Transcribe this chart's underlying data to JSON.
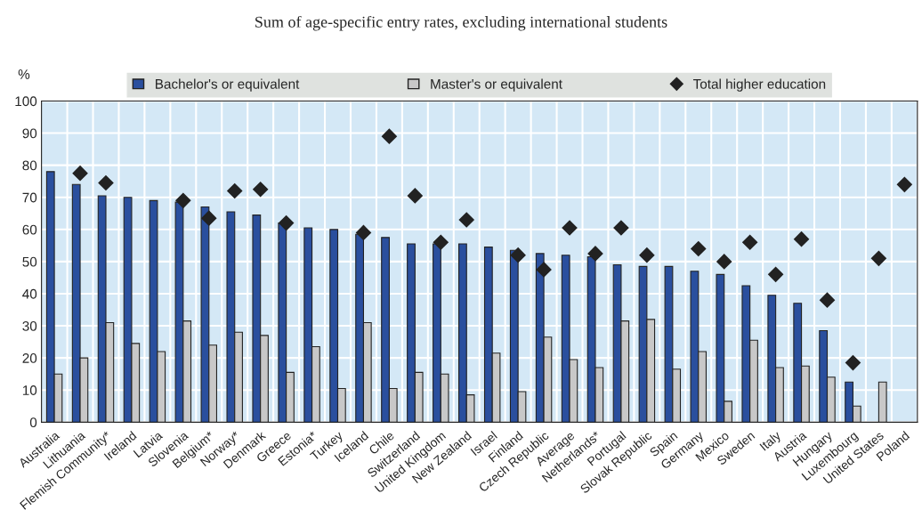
{
  "chart_data": {
    "type": "bar",
    "title": "Sum of age-specific entry rates, excluding international students",
    "ylabel": "%",
    "categories": [
      "Australia",
      "Lithuania",
      "Flemish Community*",
      "Ireland",
      "Latvia",
      "Slovenia",
      "Belgium*",
      "Norway*",
      "Denmark",
      "Greece",
      "Estonia*",
      "Turkey",
      "Iceland",
      "Chile",
      "Switzerland",
      "United Kingdom",
      "New Zealand",
      "Israel",
      "Finland",
      "Czech Republic",
      "Average",
      "Netherlands*",
      "Portugal",
      "Slovak Republic",
      "Spain",
      "Germany",
      "Mexico",
      "Sweden",
      "Italy",
      "Austria",
      "Hungary",
      "Luxembourg",
      "United States",
      "Poland"
    ],
    "series": [
      {
        "name": "Bachelor's or equivalent",
        "color": "#2a4f9e",
        "values": [
          78,
          74,
          70.5,
          70,
          69,
          68.5,
          67,
          65.5,
          64.5,
          62,
          60.5,
          60,
          58.5,
          57.5,
          55.5,
          55.5,
          55.5,
          54.5,
          53.5,
          52.5,
          52,
          51.5,
          49,
          48.5,
          48.5,
          47,
          46,
          42.5,
          39.5,
          37,
          28.5,
          12.5,
          null,
          null
        ]
      },
      {
        "name": "Master's or equivalent",
        "color": "#c8c8c8",
        "values": [
          15,
          20,
          31,
          24.5,
          22,
          31.5,
          24,
          28,
          27,
          15.5,
          23.5,
          10.5,
          31,
          10.5,
          15.5,
          15,
          8.5,
          21.5,
          9.5,
          26.5,
          19.5,
          17,
          31.5,
          32,
          16.5,
          22,
          6.5,
          25.5,
          17,
          17.5,
          14,
          5,
          12.5,
          null
        ]
      },
      {
        "name": "Total higher education",
        "type": "scatter",
        "color": "#222222",
        "marker": "diamond",
        "values": [
          null,
          77.5,
          74.5,
          null,
          null,
          69,
          63.5,
          72,
          72.5,
          62,
          null,
          null,
          59,
          89,
          70.5,
          56,
          63,
          null,
          52,
          47.5,
          60.5,
          52.5,
          60.5,
          52,
          null,
          54,
          50,
          56,
          46,
          57,
          38,
          18.5,
          51,
          74
        ]
      }
    ],
    "ylim": [
      0,
      100
    ],
    "yticks": [
      0,
      10,
      20,
      30,
      40,
      50,
      60,
      70,
      80,
      90,
      100
    ],
    "grid": true,
    "legend": "top"
  }
}
